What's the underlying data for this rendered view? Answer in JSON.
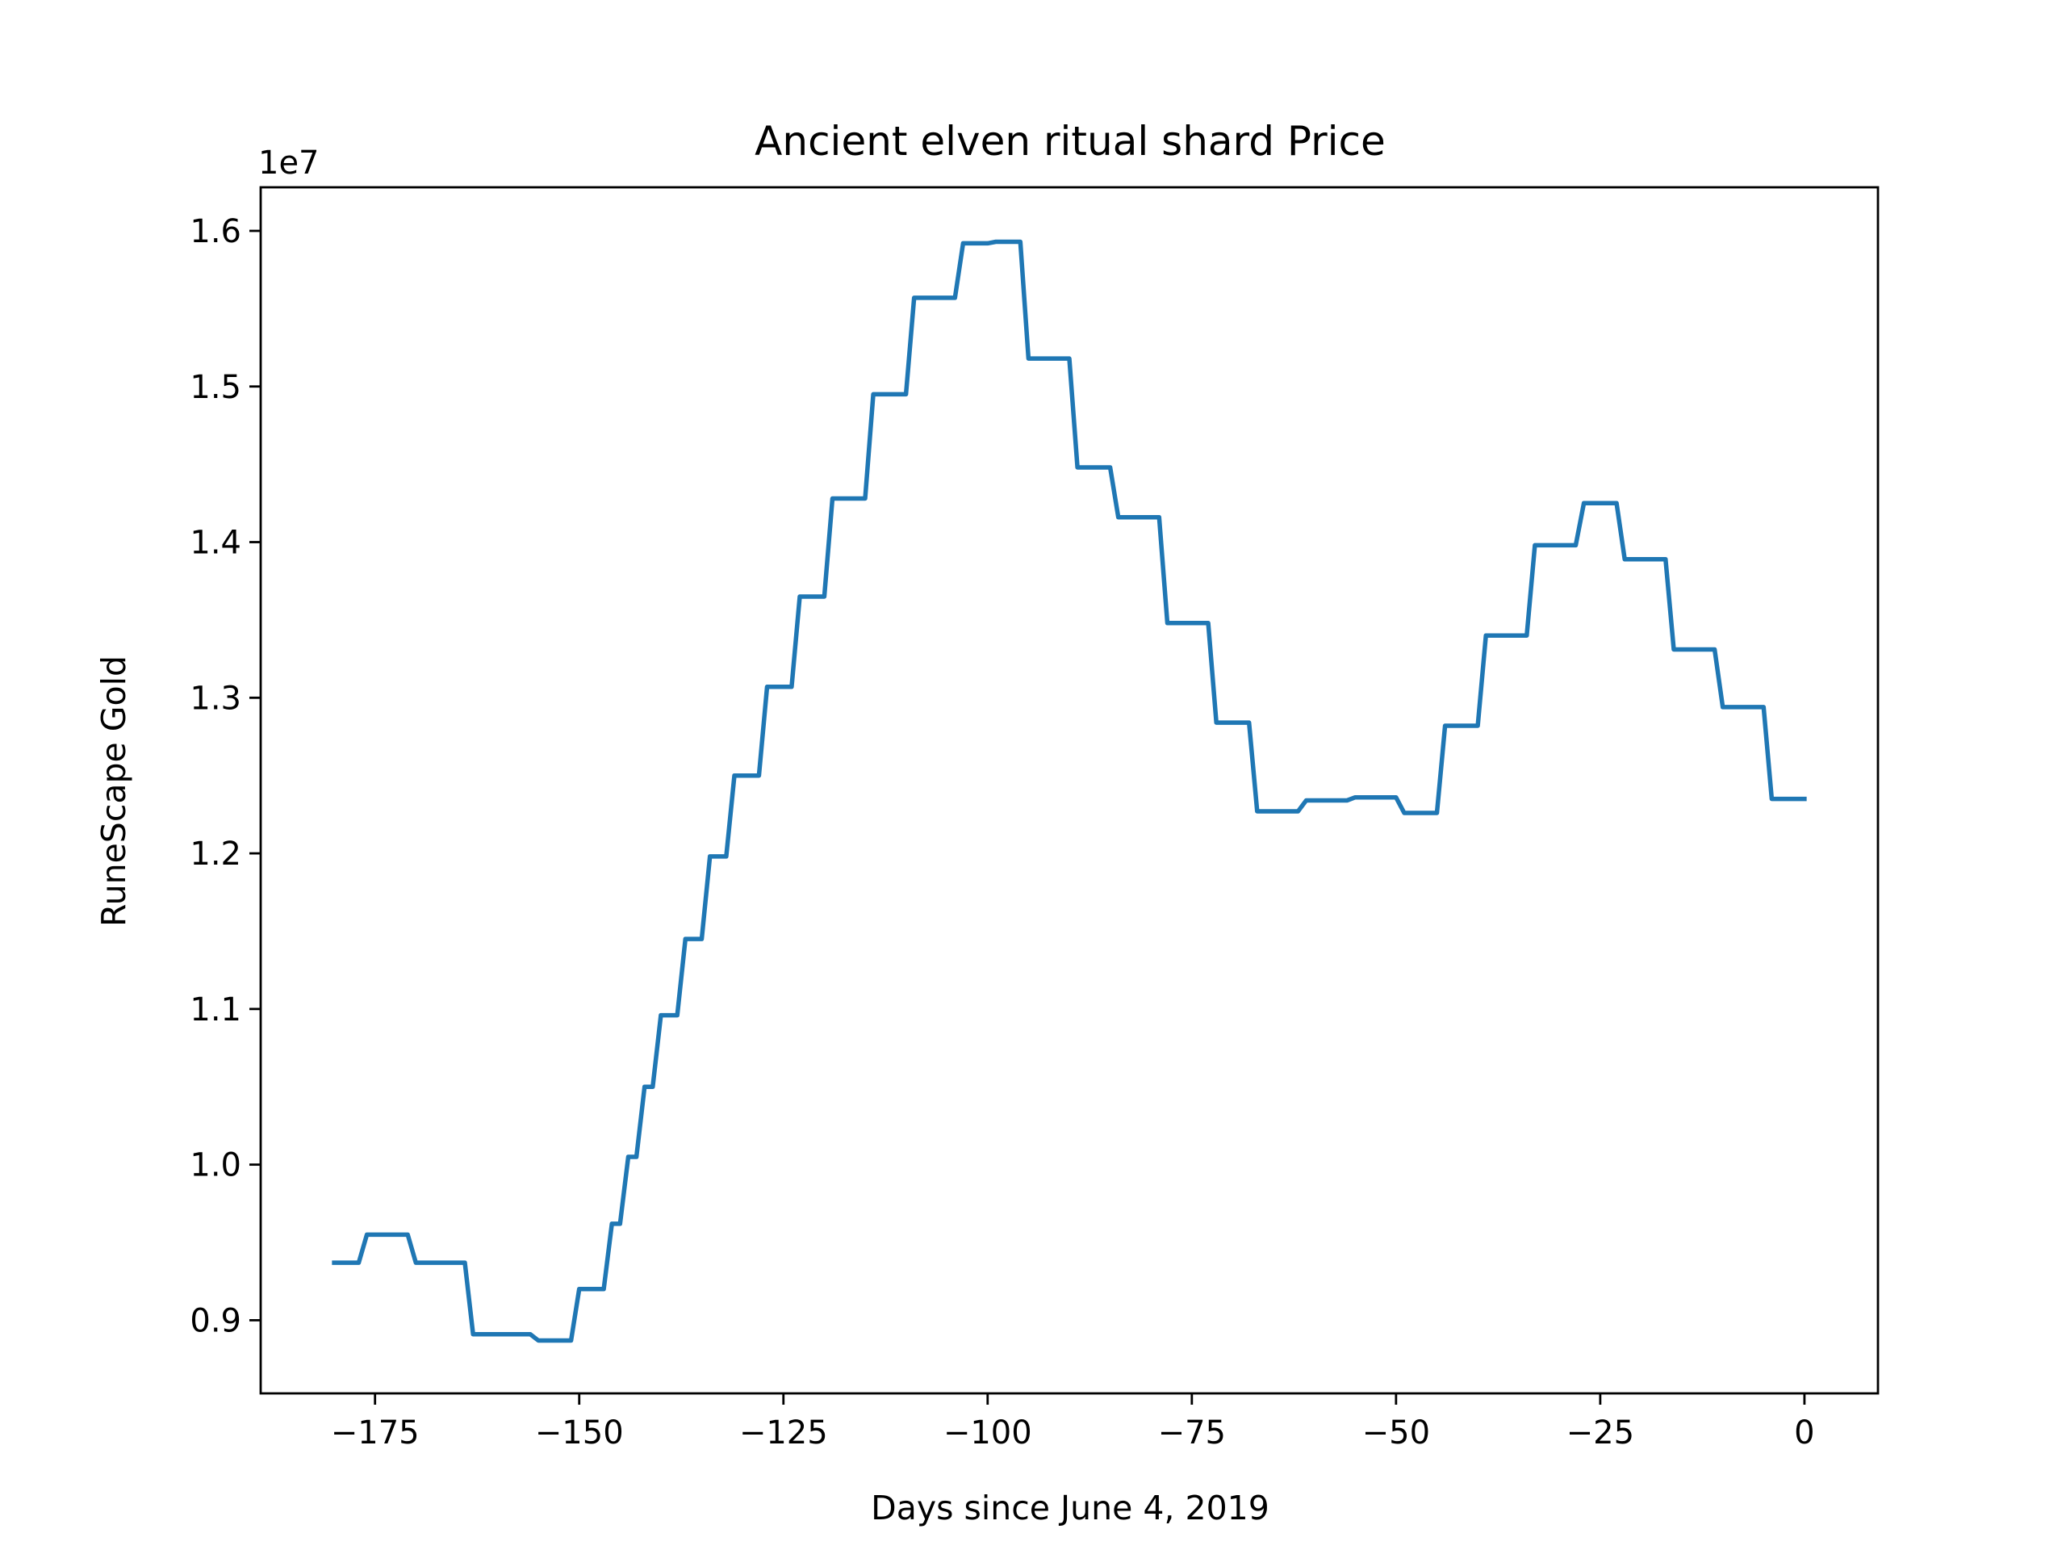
{
  "chart_data": {
    "type": "line",
    "title": "Ancient elven ritual shard Price",
    "xlabel": "Days since June 4, 2019",
    "ylabel": "RuneScape Gold",
    "y_offset_label": "1e7",
    "xlim": [
      -189,
      9
    ],
    "ylim": [
      8.53,
      16.28
    ],
    "xticks": [
      -175,
      -150,
      -125,
      -100,
      -75,
      -50,
      -25,
      0
    ],
    "xtick_labels": [
      "−175",
      "−150",
      "−125",
      "−100",
      "−75",
      "−50",
      "−25",
      "0"
    ],
    "yticks": [
      9.0,
      10.0,
      11.0,
      12.0,
      13.0,
      14.0,
      15.0,
      16.0
    ],
    "ytick_labels": [
      "0.9",
      "1.0",
      "1.1",
      "1.2",
      "1.3",
      "1.4",
      "1.5",
      "1.6"
    ],
    "grid": false,
    "series": [
      {
        "color": "#1f77b4",
        "points": [
          [
            -180,
            9.37
          ],
          [
            -177,
            9.37
          ],
          [
            -176,
            9.55
          ],
          [
            -171,
            9.55
          ],
          [
            -170,
            9.37
          ],
          [
            -164,
            9.37
          ],
          [
            -163,
            8.91
          ],
          [
            -156,
            8.91
          ],
          [
            -155,
            8.87
          ],
          [
            -151,
            8.87
          ],
          [
            -150,
            9.2
          ],
          [
            -147,
            9.2
          ],
          [
            -146,
            9.62
          ],
          [
            -145,
            9.62
          ],
          [
            -144,
            10.05
          ],
          [
            -143,
            10.05
          ],
          [
            -142,
            10.5
          ],
          [
            -141,
            10.5
          ],
          [
            -140,
            10.96
          ],
          [
            -138,
            10.96
          ],
          [
            -137,
            11.45
          ],
          [
            -135,
            11.45
          ],
          [
            -134,
            11.98
          ],
          [
            -132,
            11.98
          ],
          [
            -131,
            12.5
          ],
          [
            -128,
            12.5
          ],
          [
            -127,
            13.07
          ],
          [
            -124,
            13.07
          ],
          [
            -123,
            13.65
          ],
          [
            -120,
            13.65
          ],
          [
            -119,
            14.28
          ],
          [
            -115,
            14.28
          ],
          [
            -114,
            14.95
          ],
          [
            -110,
            14.95
          ],
          [
            -109,
            15.57
          ],
          [
            -104,
            15.57
          ],
          [
            -103,
            15.92
          ],
          [
            -100,
            15.92
          ],
          [
            -99,
            15.93
          ],
          [
            -96,
            15.93
          ],
          [
            -95,
            15.18
          ],
          [
            -90,
            15.18
          ],
          [
            -89,
            14.48
          ],
          [
            -85,
            14.48
          ],
          [
            -84,
            14.16
          ],
          [
            -79,
            14.16
          ],
          [
            -78,
            13.48
          ],
          [
            -73,
            13.48
          ],
          [
            -72,
            12.84
          ],
          [
            -68,
            12.84
          ],
          [
            -67,
            12.27
          ],
          [
            -62,
            12.27
          ],
          [
            -61,
            12.34
          ],
          [
            -56,
            12.34
          ],
          [
            -55,
            12.36
          ],
          [
            -50,
            12.36
          ],
          [
            -49,
            12.26
          ],
          [
            -45,
            12.26
          ],
          [
            -44,
            12.82
          ],
          [
            -40,
            12.82
          ],
          [
            -39,
            13.4
          ],
          [
            -34,
            13.4
          ],
          [
            -33,
            13.98
          ],
          [
            -28,
            13.98
          ],
          [
            -27,
            14.25
          ],
          [
            -23,
            14.25
          ],
          [
            -22,
            13.89
          ],
          [
            -17,
            13.89
          ],
          [
            -16,
            13.31
          ],
          [
            -11,
            13.31
          ],
          [
            -10,
            12.94
          ],
          [
            -5,
            12.94
          ],
          [
            -4,
            12.35
          ],
          [
            0,
            12.35
          ]
        ]
      }
    ]
  }
}
